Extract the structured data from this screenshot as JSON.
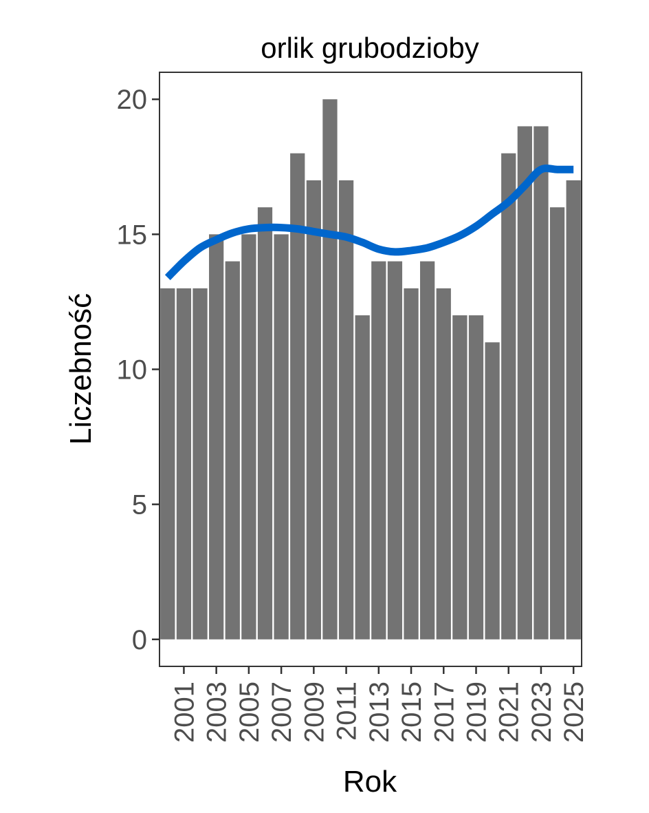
{
  "chart_data": {
    "type": "bar",
    "title": "orlik grubodzioby",
    "xlabel": "Rok",
    "ylabel": "Liczebność",
    "x": [
      2000,
      2001,
      2002,
      2003,
      2004,
      2005,
      2006,
      2007,
      2008,
      2009,
      2010,
      2011,
      2012,
      2013,
      2014,
      2015,
      2016,
      2017,
      2018,
      2019,
      2020,
      2021,
      2022,
      2023,
      2024,
      2025
    ],
    "values": [
      13,
      13,
      13,
      15,
      14,
      15,
      16,
      15,
      18,
      17,
      20,
      17,
      12,
      14,
      14,
      13,
      14,
      13,
      12,
      12,
      11,
      18,
      19,
      19,
      16,
      17
    ],
    "x_tick_labels": [
      "2001",
      "2003",
      "2005",
      "2007",
      "2009",
      "2011",
      "2013",
      "2015",
      "2017",
      "2019",
      "2021",
      "2023",
      "2025"
    ],
    "y_ticks": [
      0,
      5,
      10,
      15,
      20
    ],
    "ylim": [
      -1,
      21
    ],
    "xlim": [
      1999.5,
      2025.5
    ],
    "bar_color": "#737373",
    "trend": {
      "type": "smooth",
      "color": "#0066cc",
      "x": [
        2000,
        2001,
        2002,
        2003,
        2004,
        2005,
        2006,
        2007,
        2008,
        2009,
        2010,
        2011,
        2012,
        2013,
        2014,
        2015,
        2016,
        2017,
        2018,
        2019,
        2020,
        2021,
        2022,
        2023,
        2024,
        2025
      ],
      "y": [
        13.4,
        14.0,
        14.5,
        14.8,
        15.05,
        15.2,
        15.25,
        15.25,
        15.2,
        15.1,
        15.0,
        14.9,
        14.7,
        14.45,
        14.35,
        14.4,
        14.5,
        14.7,
        14.95,
        15.3,
        15.75,
        16.2,
        16.8,
        17.4,
        17.4,
        17.4
      ],
      "x_end": 2025
    },
    "grid": false,
    "legend": "none"
  }
}
